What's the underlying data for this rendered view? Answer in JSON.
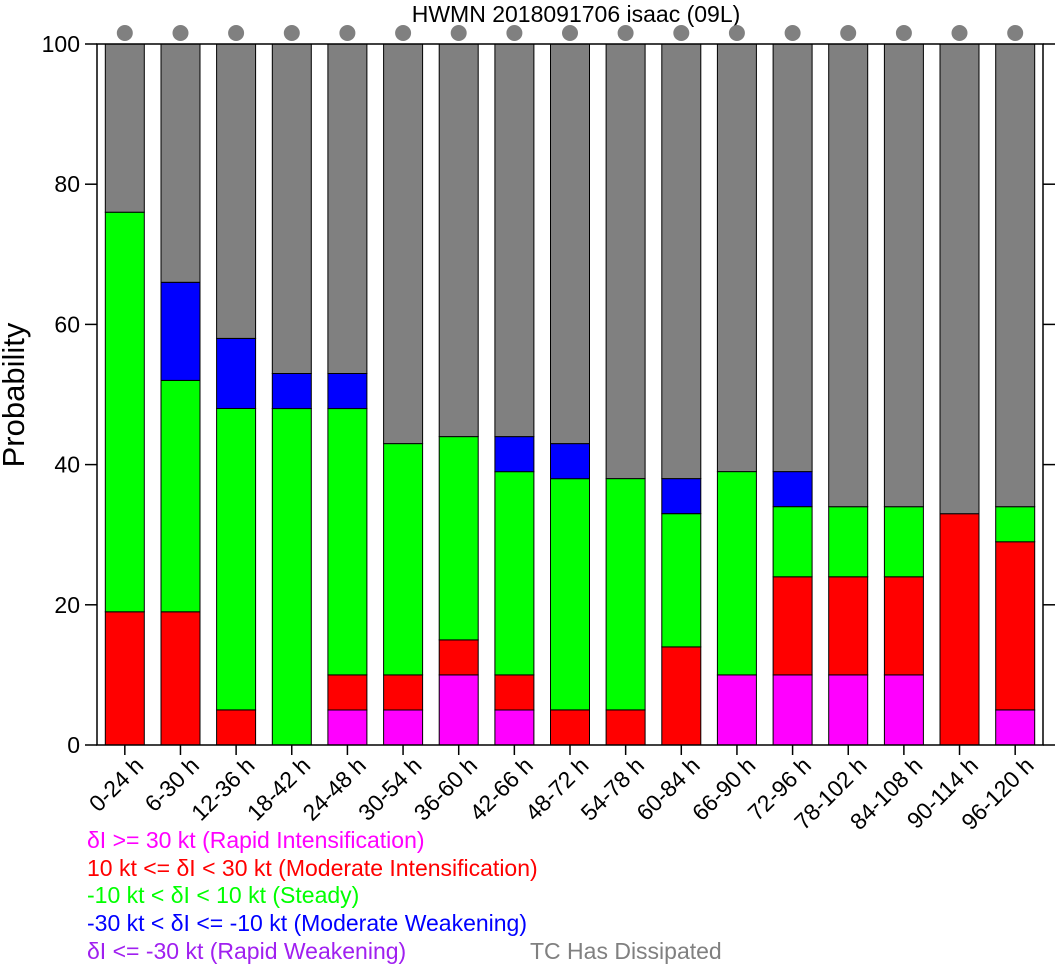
{
  "chart_data": {
    "type": "bar",
    "stacked": true,
    "title": "HWMN 2018091706 isaac (09L)",
    "ylabel": "Probability",
    "xlabel": "",
    "ylim": [
      0,
      100
    ],
    "yticks": [
      "0",
      "20",
      "40",
      "60",
      "80",
      "100"
    ],
    "grid": false,
    "legend_position": "bottom-left",
    "categories": [
      "0-24 h",
      "6-30 h",
      "12-36 h",
      "18-42 h",
      "24-48 h",
      "30-54 h",
      "36-60 h",
      "42-66 h",
      "48-72 h",
      "54-78 h",
      "60-84 h",
      "66-90 h",
      "72-96 h",
      "78-102 h",
      "84-108 h",
      "90-114 h",
      "96-120 h"
    ],
    "series": [
      {
        "name": "δI >= 30 kt (Rapid Intensification)",
        "color": "#ff00ff",
        "values": [
          0,
          0,
          0,
          0,
          5,
          5,
          10,
          5,
          0,
          0,
          0,
          10,
          10,
          10,
          10,
          0,
          5
        ]
      },
      {
        "name": "10 kt <= δI < 30 kt (Moderate Intensification)",
        "color": "#ff0000",
        "values": [
          19,
          19,
          5,
          0,
          5,
          5,
          5,
          5,
          5,
          5,
          14,
          0,
          14,
          14,
          14,
          33,
          24
        ]
      },
      {
        "name": "-10 kt < δI < 10 kt (Steady)",
        "color": "#00ff00",
        "values": [
          57,
          33,
          43,
          48,
          38,
          33,
          29,
          29,
          33,
          33,
          19,
          29,
          10,
          10,
          10,
          0,
          5
        ]
      },
      {
        "name": "-30 kt < δI <= -10 kt (Moderate Weakening)",
        "color": "#0000ff",
        "values": [
          0,
          14,
          10,
          5,
          5,
          0,
          0,
          5,
          5,
          0,
          5,
          0,
          5,
          0,
          0,
          0,
          0
        ]
      },
      {
        "name": "δI <= -30 kt (Rapid Weakening)",
        "color": "#a020f0",
        "values": [
          0,
          0,
          0,
          0,
          0,
          0,
          0,
          0,
          0,
          0,
          0,
          0,
          0,
          0,
          0,
          0,
          0
        ]
      },
      {
        "name": "TC Has Dissipated",
        "color": "#808080",
        "values": [
          24,
          34,
          42,
          47,
          47,
          57,
          56,
          56,
          57,
          62,
          62,
          61,
          61,
          66,
          66,
          67,
          66
        ]
      }
    ]
  }
}
